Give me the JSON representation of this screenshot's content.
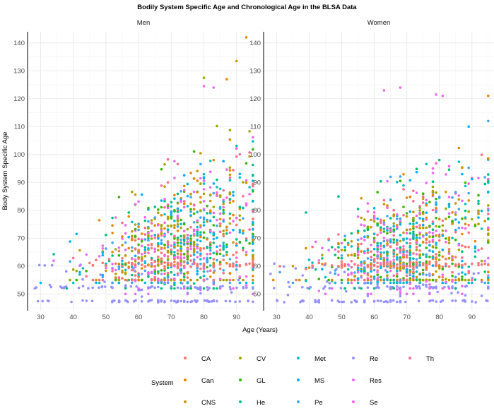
{
  "chart_data": {
    "type": "scatter",
    "title": "Bodily System Specific Age and Chronological Age in the BLSA Data",
    "xlabel": "Age (Years)",
    "ylabel": "Body System Specific Age",
    "facets": [
      {
        "name": "Men",
        "xlim": [
          26,
          97
        ],
        "ylim": [
          44,
          144
        ]
      },
      {
        "name": "Women",
        "xlim": [
          26,
          97
        ],
        "ylim": [
          44,
          144
        ]
      }
    ],
    "x_ticks": [
      30,
      40,
      50,
      60,
      70,
      80,
      90
    ],
    "y_ticks": [
      50,
      60,
      70,
      80,
      90,
      100,
      110,
      120,
      130,
      140
    ],
    "legend": {
      "title": "System",
      "placement": "bottom",
      "entries": [
        {
          "label": "CA",
          "color": "#F8766D"
        },
        {
          "label": "Can",
          "color": "#E58700"
        },
        {
          "label": "CNS",
          "color": "#C99800"
        },
        {
          "label": "CV",
          "color": "#A3A500"
        },
        {
          "label": "GL",
          "color": "#39B600"
        },
        {
          "label": "He",
          "color": "#00BF7D"
        },
        {
          "label": "Met",
          "color": "#00BFC4"
        },
        {
          "label": "MS",
          "color": "#00B0F6"
        },
        {
          "label": "Pe",
          "color": "#3FA6F0"
        },
        {
          "label": "Re",
          "color": "#9590FF"
        },
        {
          "label": "Res",
          "color": "#E76BF3"
        },
        {
          "label": "Se",
          "color": "#F564E3"
        },
        {
          "label": "Th",
          "color": "#FF6C91"
        }
      ]
    },
    "series_summary": [
      {
        "name": "CA",
        "age_range": [
          28,
          95
        ],
        "value_range": [
          55,
          75
        ]
      },
      {
        "name": "Can",
        "age_range": [
          28,
          95
        ],
        "value_range": [
          55,
          142
        ]
      },
      {
        "name": "CNS",
        "age_range": [
          28,
          95
        ],
        "value_range": [
          55,
          133
        ]
      },
      {
        "name": "CV",
        "age_range": [
          28,
          95
        ],
        "value_range": [
          55,
          128
        ]
      },
      {
        "name": "GL",
        "age_range": [
          28,
          95
        ],
        "value_range": [
          55,
          110
        ]
      },
      {
        "name": "He",
        "age_range": [
          28,
          95
        ],
        "value_range": [
          52,
          100
        ]
      },
      {
        "name": "Met",
        "age_range": [
          28,
          95
        ],
        "value_range": [
          54,
          105
        ]
      },
      {
        "name": "MS",
        "age_range": [
          28,
          95
        ],
        "value_range": [
          54,
          112
        ]
      },
      {
        "name": "Pe",
        "age_range": [
          28,
          95
        ],
        "value_range": [
          54,
          112
        ]
      },
      {
        "name": "Re",
        "age_range": [
          28,
          95
        ],
        "value_range": [
          47,
          62
        ]
      },
      {
        "name": "Res",
        "age_range": [
          28,
          95
        ],
        "value_range": [
          50,
          125
        ]
      },
      {
        "name": "Se",
        "age_range": [
          28,
          95
        ],
        "value_range": [
          52,
          124
        ]
      },
      {
        "name": "Th",
        "age_range": [
          28,
          95
        ],
        "value_range": [
          55,
          105
        ]
      }
    ]
  }
}
